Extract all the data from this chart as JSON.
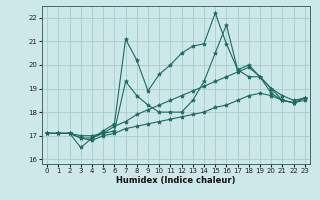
{
  "xlabel": "Humidex (Indice chaleur)",
  "xlim": [
    -0.5,
    23.5
  ],
  "ylim": [
    15.8,
    22.5
  ],
  "yticks": [
    16,
    17,
    18,
    19,
    20,
    21,
    22
  ],
  "xticks": [
    0,
    1,
    2,
    3,
    4,
    5,
    6,
    7,
    8,
    9,
    10,
    11,
    12,
    13,
    14,
    15,
    16,
    17,
    18,
    19,
    20,
    21,
    22,
    23
  ],
  "bg_color": "#cde8e8",
  "grid_color": "#a8cccc",
  "line_color": "#1a6b60",
  "lines": [
    {
      "x": [
        0,
        1,
        2,
        3,
        4,
        5,
        6,
        7,
        8,
        9,
        10,
        11,
        12,
        13,
        14,
        15,
        16,
        17,
        18,
        19,
        20,
        21,
        22,
        23
      ],
      "y": [
        17.1,
        17.1,
        17.1,
        16.5,
        16.9,
        17.2,
        17.5,
        21.1,
        20.2,
        18.9,
        19.6,
        20.0,
        20.5,
        20.8,
        20.9,
        22.2,
        20.9,
        19.8,
        20.0,
        19.5,
        19.0,
        18.5,
        18.4,
        18.6
      ]
    },
    {
      "x": [
        0,
        1,
        2,
        3,
        4,
        5,
        6,
        7,
        8,
        9,
        10,
        11,
        12,
        13,
        14,
        15,
        16,
        17,
        18,
        19,
        20,
        21,
        22,
        23
      ],
      "y": [
        17.1,
        17.1,
        17.1,
        17.0,
        17.0,
        17.1,
        17.2,
        19.3,
        18.7,
        18.3,
        18.0,
        18.0,
        18.0,
        18.5,
        19.3,
        20.5,
        21.7,
        19.8,
        19.5,
        19.5,
        18.8,
        18.5,
        18.4,
        18.6
      ]
    },
    {
      "x": [
        0,
        1,
        2,
        3,
        4,
        5,
        6,
        7,
        8,
        9,
        10,
        11,
        12,
        13,
        14,
        15,
        16,
        17,
        18,
        19,
        20,
        21,
        22,
        23
      ],
      "y": [
        17.1,
        17.1,
        17.1,
        16.9,
        16.9,
        17.1,
        17.4,
        17.6,
        17.9,
        18.1,
        18.3,
        18.5,
        18.7,
        18.9,
        19.1,
        19.3,
        19.5,
        19.7,
        19.9,
        19.5,
        19.0,
        18.7,
        18.5,
        18.6
      ]
    },
    {
      "x": [
        0,
        1,
        2,
        3,
        4,
        5,
        6,
        7,
        8,
        9,
        10,
        11,
        12,
        13,
        14,
        15,
        16,
        17,
        18,
        19,
        20,
        21,
        22,
        23
      ],
      "y": [
        17.1,
        17.1,
        17.1,
        16.9,
        16.8,
        17.0,
        17.1,
        17.3,
        17.4,
        17.5,
        17.6,
        17.7,
        17.8,
        17.9,
        18.0,
        18.2,
        18.3,
        18.5,
        18.7,
        18.8,
        18.7,
        18.5,
        18.4,
        18.5
      ]
    }
  ]
}
